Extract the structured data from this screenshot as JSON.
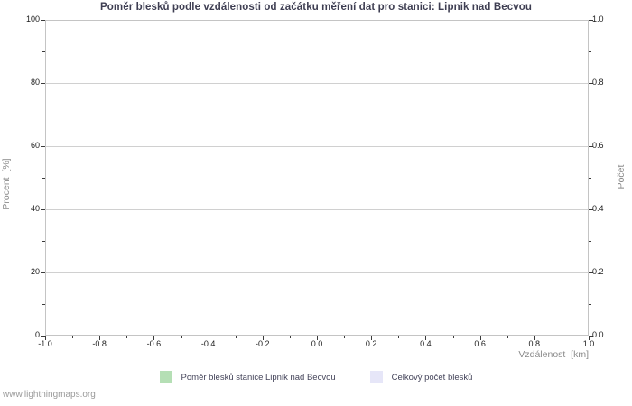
{
  "watermark": "www.lightningmaps.org",
  "chart": {
    "title": "Poměr blesků podle vzdálenosti od začátku měření dat pro stanici: Lipnik nad Becvou",
    "left_axis": {
      "label": "Procent  [%]",
      "range": [
        0,
        100
      ],
      "major": [
        0,
        20,
        40,
        60,
        80,
        100
      ],
      "minor": [
        10,
        30,
        50,
        70,
        90
      ],
      "labels": [
        "0",
        "20",
        "40",
        "60",
        "80",
        "100"
      ]
    },
    "right_axis": {
      "label": "Počet",
      "range": [
        0,
        1
      ],
      "major": [
        0,
        0.2,
        0.4,
        0.6,
        0.8,
        1
      ],
      "minor": [
        0.1,
        0.3,
        0.5,
        0.7,
        0.9
      ],
      "labels": [
        "0.0",
        "0.2",
        "0.4",
        "0.6",
        "0.8",
        "1.0"
      ]
    },
    "x_axis": {
      "label": "Vzdálenost  [km]",
      "range": [
        -1,
        1
      ],
      "major": [
        -1,
        -0.8,
        -0.6,
        -0.4,
        -0.2,
        0,
        0.2,
        0.4,
        0.6,
        0.8,
        1
      ],
      "minor": [
        -0.9,
        -0.7,
        -0.5,
        -0.3,
        -0.1,
        0.1,
        0.3,
        0.5,
        0.7,
        0.9
      ],
      "labels": [
        "-1.0",
        "-0.8",
        "-0.6",
        "-0.4",
        "-0.2",
        "0.0",
        "0.2",
        "0.4",
        "0.6",
        "0.8",
        "1.0"
      ]
    },
    "gridlines": [
      20,
      40,
      60,
      80
    ],
    "legend": [
      {
        "label": "Poměr blesků stanice Lipnik nad Becvou",
        "color": "#b5dfb5"
      },
      {
        "label": "Celkový počet blesků",
        "color": "#e6e6f8"
      }
    ],
    "colors": {
      "title": "#3e3e52",
      "axis_title": "#8a8a8a",
      "tick_label": "#1c1c1c",
      "tick": "#3a3a3a",
      "grid": "#d0d0d0",
      "plot_border": "#c4c4c4",
      "legend_text": "#44445a",
      "watermark": "#9a9a9a",
      "background": "#ffffff"
    }
  },
  "chart_data": {
    "type": "line",
    "title": "Poměr blesků podle vzdálenosti od začátku měření dat pro stanici: Lipnik nad Becvou",
    "xlabel": "Vzdálenost  [km]",
    "ylabel_left": "Procent  [%]",
    "ylabel_right": "Počet",
    "xlim": [
      -1.0,
      1.0
    ],
    "ylim_left": [
      0,
      100
    ],
    "ylim_right": [
      0.0,
      1.0
    ],
    "x_ticks": [
      -1.0,
      -0.8,
      -0.6,
      -0.4,
      -0.2,
      0.0,
      0.2,
      0.4,
      0.6,
      0.8,
      1.0
    ],
    "y_ticks_left": [
      0,
      20,
      40,
      60,
      80,
      100
    ],
    "y_ticks_right": [
      0.0,
      0.2,
      0.4,
      0.6,
      0.8,
      1.0
    ],
    "grid": "horizontal major gridlines only",
    "legend_position": "bottom-center",
    "series": [
      {
        "name": "Poměr blesků stanice Lipnik nad Becvou",
        "color": "#b5dfb5",
        "x": [],
        "y": []
      },
      {
        "name": "Celkový počet blesků",
        "color": "#e6e6f8",
        "x": [],
        "y": []
      }
    ],
    "note": "Plot area is empty — no data points or curves are rendered in the screenshot."
  }
}
